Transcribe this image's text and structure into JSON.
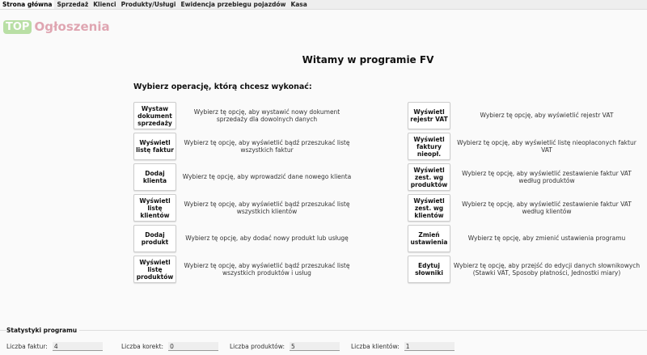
{
  "tabs": [
    "Strona główna",
    "Sprzedaż",
    "Klienci",
    "Produkty/Usługi",
    "Ewidencja przebiegu pojazdów",
    "Kasa"
  ],
  "logo": {
    "top": "TOP",
    "name": "Ogłoszenia"
  },
  "title": "Witamy w programie FV",
  "subtitle": "Wybierz operację, którą chcesz wykonać:",
  "left": [
    {
      "label": "Wystaw dokument sprzedaży",
      "desc": "Wybierz tę opcję, aby wystawić nowy dokument sprzedaży dla dowolnych danych"
    },
    {
      "label": "Wyświetl listę faktur",
      "desc": "Wybierz tę opcję, aby wyświetlić bądź przeszukać listę wszystkich faktur"
    },
    {
      "label": "Dodaj klienta",
      "desc": "Wybierz tę opcję, aby wprowadzić dane nowego klienta"
    },
    {
      "label": "Wyświetl listę klientów",
      "desc": "Wybierz tę opcję, aby wyświetlić bądź przeszukać listę wszystkich klientów"
    },
    {
      "label": "Dodaj produkt",
      "desc": "Wybierz tę opcję, aby dodać nowy produkt lub usługę"
    },
    {
      "label": "Wyświetl listę produktów",
      "desc": "Wybierz tę opcję, aby wyświetlić bądź przeszukać listę wszystkich produktów i usług"
    }
  ],
  "right": [
    {
      "label": "Wyświetl rejestr VAT",
      "desc": "Wybierz tę opcję, aby wyświetlić rejestr VAT"
    },
    {
      "label": "Wyświetl faktury nieopł.",
      "desc": "Wybierz tę opcję, aby wyświetlić listę nieopłaconych faktur VAT"
    },
    {
      "label": "Wyświetl zest. wg produktów",
      "desc": "Wybierz tę opcję, aby wyświetlić zestawienie faktur VAT według produktów"
    },
    {
      "label": "Wyświetl zest. wg klientów",
      "desc": "Wybierz tę opcję, aby wyświetlić zestawienie faktur VAT według klientów"
    },
    {
      "label": "Zmień ustawienia",
      "desc": "Wybierz tę opcję, aby zmienić ustawienia programu"
    },
    {
      "label": "Edytuj słowniki",
      "desc": "Wybierz tę opcję, aby przejść do edycji danych słownikowych (Stawki VAT, Sposoby płatności, Jednostki miary)"
    }
  ],
  "stats": {
    "title": "Statystyki programu",
    "items": [
      {
        "label": "Liczba faktur:",
        "value": "4"
      },
      {
        "label": "Liczba korekt:",
        "value": "0"
      },
      {
        "label": "Liczba produktów:",
        "value": "5"
      },
      {
        "label": "Liczba klientów:",
        "value": "1"
      }
    ]
  }
}
